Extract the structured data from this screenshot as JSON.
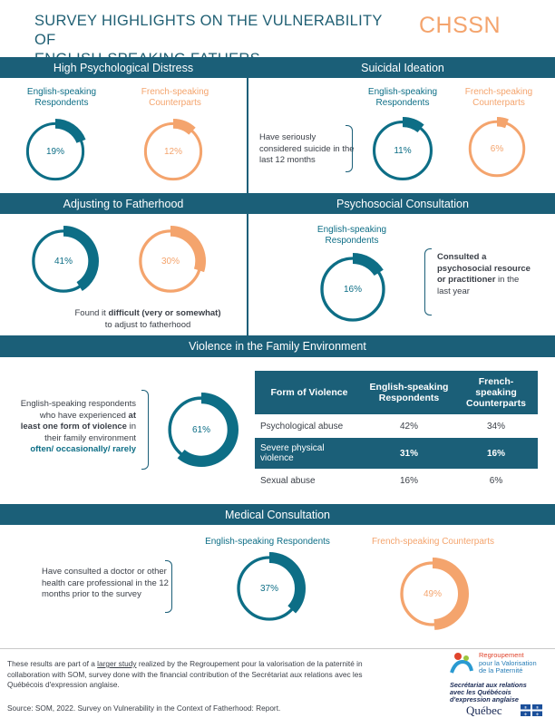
{
  "header": {
    "title_line1": "SURVEY HIGHLIGHTS ON THE  VULNERABILITY OF",
    "title_line2": "ENGLISH-SPEAKING FATHERS",
    "logo": "CHSSN"
  },
  "colors": {
    "teal": "#0d6e86",
    "orange": "#f4a46d",
    "band": "#1b5f78"
  },
  "distress": {
    "heading": "High Psychological Distress",
    "eng_label": "English-speaking Respondents",
    "fr_label": "French-speaking Counterparts",
    "eng_pct": "19%",
    "eng_value": 19,
    "fr_pct": "12%",
    "fr_value": 12
  },
  "suicide": {
    "heading": "Suicidal Ideation",
    "eng_label": "English-speaking Respondents",
    "fr_label": "French-speaking Counterparts",
    "description": "Have seriously considered suicide in the last 12 months",
    "eng_pct": "11%",
    "eng_value": 11,
    "fr_pct": "6%",
    "fr_value": 6
  },
  "fatherhood": {
    "heading": "Adjusting to Fatherhood",
    "eng_pct": "41%",
    "eng_value": 41,
    "fr_pct": "30%",
    "fr_value": 30,
    "desc_pre": "Found it ",
    "desc_bold": "difficult (very or somewhat)",
    "desc_post": " to adjust to fatherhood"
  },
  "psychosocial": {
    "heading": "Psychosocial Consultation",
    "eng_label": "English-speaking Respondents",
    "eng_pct": "16%",
    "eng_value": 16,
    "desc_bold": "Consulted a psychosocial resource or practitioner",
    "desc_post": " in the last year"
  },
  "violence": {
    "heading": "Violence in the Family Environment",
    "desc_pre": "English-speaking respondents who have experienced ",
    "desc_bold": "at least one form of violence",
    "desc_mid": " in their family environment",
    "desc_teal": "often/ occasionally/ rarely",
    "pct": "61%",
    "value": 61,
    "table": {
      "col1": "Form of Violence",
      "col2": "English-speaking Respondents",
      "col3": "French-speaking Counterparts",
      "rows": [
        {
          "form": "Psychological abuse",
          "eng": "42%",
          "fr": "34%"
        },
        {
          "form": "Severe physical violence",
          "eng": "31%",
          "fr": "16%"
        },
        {
          "form": "Sexual abuse",
          "eng": "16%",
          "fr": "6%"
        }
      ]
    }
  },
  "medical": {
    "heading": "Medical Consultation",
    "eng_label": "English-speaking Respondents",
    "fr_label": "French-speaking Counterparts",
    "description": "Have consulted a doctor or other health care professional in the 12 months prior to the survey",
    "eng_pct": "37%",
    "eng_value": 37,
    "fr_pct": "49%",
    "fr_value": 49
  },
  "footer": {
    "text_pre": "These results are part of a ",
    "link": "larger study",
    "text_post": " realized by the Regroupement pour la valorisation de la paternité in collaboration with SOM, survey done with the financial contribution of the Secrétariat aux relations avec les Québécois d'expression anglaise.",
    "source": "Source: SOM, 2022. Survey on Vulnerability in the Context of Fatherhood: Report.",
    "rvp_line1": "Regroupement",
    "rvp_line2": "pour la Valorisation",
    "rvp_line3": "de la Paternité",
    "sec_line1": "Secrétariat aux relations",
    "sec_line2": "avec les Québécois",
    "sec_line3": "d'expression anglaise",
    "quebec": "Québec"
  }
}
